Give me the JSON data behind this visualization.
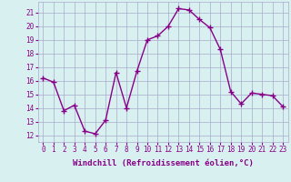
{
  "x": [
    0,
    1,
    2,
    3,
    4,
    5,
    6,
    7,
    8,
    9,
    10,
    11,
    12,
    13,
    14,
    15,
    16,
    17,
    18,
    19,
    20,
    21,
    22,
    23
  ],
  "y": [
    16.2,
    15.9,
    13.8,
    14.2,
    12.3,
    12.1,
    13.1,
    16.6,
    14.0,
    16.7,
    19.0,
    19.3,
    20.0,
    21.3,
    21.2,
    20.5,
    19.9,
    18.3,
    15.2,
    14.3,
    15.1,
    15.0,
    14.9,
    14.1
  ],
  "line_color": "#880088",
  "marker": "+",
  "marker_size": 4.0,
  "marker_lw": 1.0,
  "bg_color": "#d8f0f0",
  "grid_color": "#aaaacc",
  "xlabel": "Windchill (Refroidissement éolien,°C)",
  "xlabel_color": "#880088",
  "yticks": [
    12,
    13,
    14,
    15,
    16,
    17,
    18,
    19,
    20,
    21
  ],
  "ylim": [
    11.5,
    21.8
  ],
  "xlim": [
    -0.5,
    23.5
  ],
  "xtick_labels": [
    "0",
    "1",
    "2",
    "3",
    "4",
    "5",
    "6",
    "7",
    "8",
    "9",
    "10",
    "11",
    "12",
    "13",
    "14",
    "15",
    "16",
    "17",
    "18",
    "19",
    "20",
    "21",
    "22",
    "23"
  ],
  "tick_fontsize": 5.5,
  "xlabel_fontsize": 6.5,
  "linewidth": 1.0
}
